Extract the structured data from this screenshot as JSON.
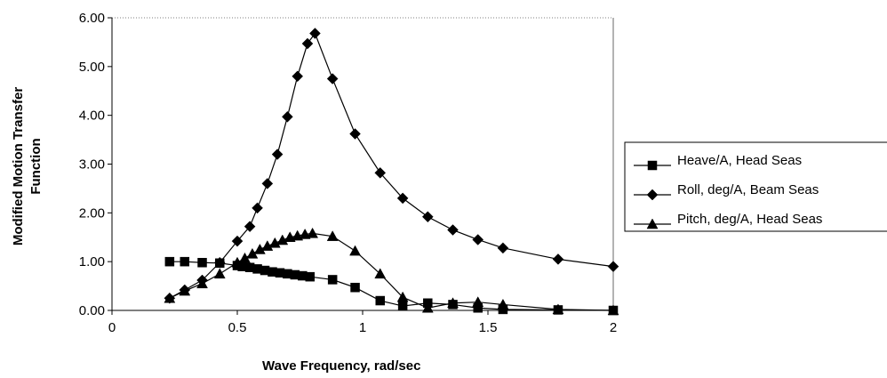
{
  "chart_data": {
    "type": "line",
    "title": "",
    "xlabel": "Wave Frequency, rad/sec",
    "ylabel_lines": [
      "Modified Motion Transfer",
      "Function"
    ],
    "xlim": [
      0,
      2
    ],
    "ylim": [
      0,
      6
    ],
    "x_ticks": [
      "0",
      "0.5",
      "1",
      "1.5",
      "2"
    ],
    "y_ticks": [
      "0.00",
      "1.00",
      "2.00",
      "3.00",
      "4.00",
      "5.00",
      "6.00"
    ],
    "grid": false,
    "legend_position": "right",
    "series": [
      {
        "name": "Heave/A, Head Seas",
        "marker": "square",
        "x": [
          0.23,
          0.29,
          0.36,
          0.43,
          0.5,
          0.52,
          0.55,
          0.58,
          0.61,
          0.64,
          0.67,
          0.7,
          0.73,
          0.76,
          0.79,
          0.88,
          0.97,
          1.07,
          1.16,
          1.26,
          1.36,
          1.46,
          1.56,
          1.78,
          2.0
        ],
        "y": [
          1.0,
          1.0,
          0.98,
          0.97,
          0.92,
          0.9,
          0.88,
          0.85,
          0.82,
          0.79,
          0.77,
          0.75,
          0.73,
          0.71,
          0.69,
          0.63,
          0.47,
          0.2,
          0.09,
          0.15,
          0.12,
          0.05,
          0.02,
          0.01,
          0.0
        ]
      },
      {
        "name": "Roll, deg/A, Beam Seas",
        "marker": "diamond",
        "x": [
          0.23,
          0.29,
          0.36,
          0.43,
          0.5,
          0.55,
          0.58,
          0.62,
          0.66,
          0.7,
          0.74,
          0.78,
          0.81,
          0.88,
          0.97,
          1.07,
          1.16,
          1.26,
          1.36,
          1.46,
          1.56,
          1.78,
          2.0
        ],
        "y": [
          0.25,
          0.42,
          0.62,
          0.98,
          1.42,
          1.72,
          2.1,
          2.6,
          3.2,
          3.97,
          4.8,
          5.47,
          5.68,
          4.75,
          3.62,
          2.82,
          2.3,
          1.92,
          1.65,
          1.45,
          1.28,
          1.05,
          0.9
        ]
      },
      {
        "name": "Pitch, deg/A, Head Seas",
        "marker": "triangle",
        "x": [
          0.23,
          0.29,
          0.36,
          0.43,
          0.5,
          0.53,
          0.56,
          0.59,
          0.62,
          0.65,
          0.68,
          0.71,
          0.74,
          0.77,
          0.8,
          0.88,
          0.97,
          1.07,
          1.16,
          1.26,
          1.36,
          1.46,
          1.56,
          1.78,
          2.0
        ],
        "y": [
          0.25,
          0.4,
          0.55,
          0.75,
          0.98,
          1.07,
          1.16,
          1.25,
          1.32,
          1.38,
          1.44,
          1.5,
          1.53,
          1.56,
          1.58,
          1.52,
          1.22,
          0.75,
          0.27,
          0.05,
          0.15,
          0.17,
          0.12,
          0.02,
          0.0
        ]
      }
    ]
  }
}
